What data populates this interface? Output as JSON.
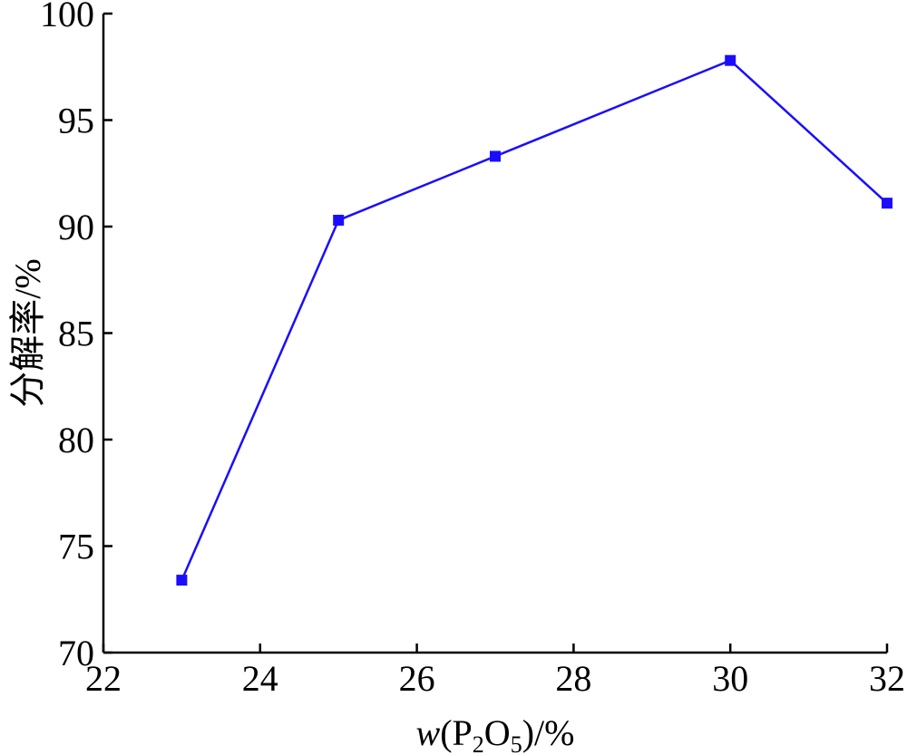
{
  "chart_data": {
    "type": "line",
    "title": "",
    "xlabel_parts": {
      "var": "w",
      "open": "(P",
      "sub1": "2",
      "mid": "O",
      "sub2": "5",
      "close": ")/%"
    },
    "ylabel": "分解率/%",
    "xlim": [
      22,
      32
    ],
    "ylim": [
      70,
      100
    ],
    "x_ticks": [
      22,
      24,
      26,
      28,
      30,
      32
    ],
    "y_ticks": [
      70,
      75,
      80,
      85,
      90,
      95,
      100
    ],
    "grid": false,
    "legend": "none",
    "series": [
      {
        "color": "#1a0dff",
        "marker": "square",
        "x": [
          23,
          25,
          27,
          30,
          32
        ],
        "y": [
          73.4,
          90.3,
          93.3,
          97.8,
          91.1
        ]
      }
    ]
  }
}
